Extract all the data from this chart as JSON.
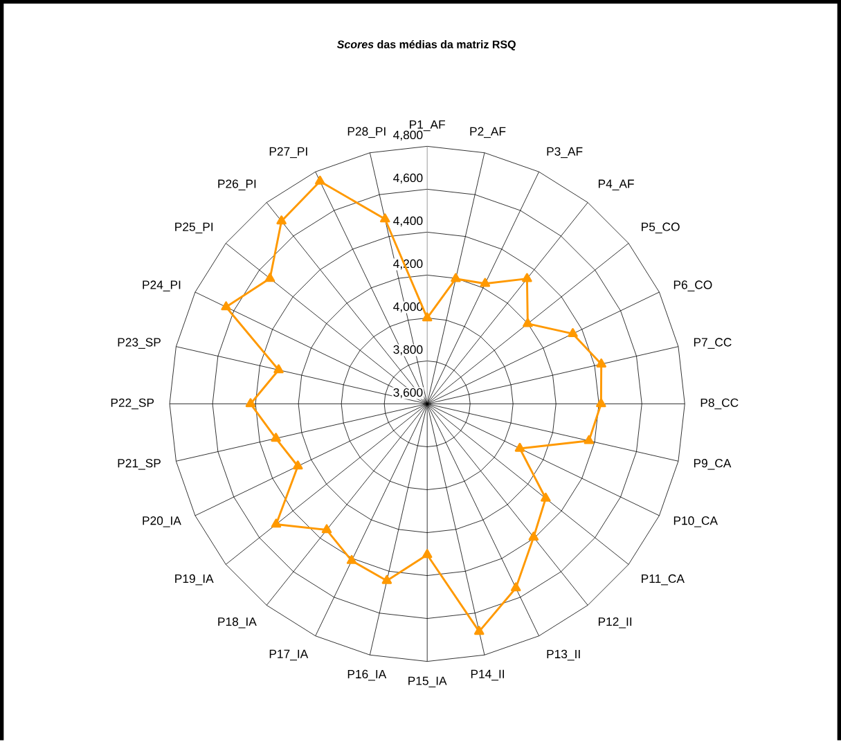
{
  "chart_data": {
    "type": "radar",
    "title": "*Scores* das médias da matriz RSQ",
    "categories": [
      "P1_AF",
      "P2_AF",
      "P3_AF",
      "P4_AF",
      "P5_CO",
      "P6_CO",
      "P7_CC",
      "P8_CC",
      "P9_CA",
      "P10_CA",
      "P11_CA",
      "P12_II",
      "P13_II",
      "P14_II",
      "P15_IA",
      "P16_IA",
      "P17_IA",
      "P18_IA",
      "P19_IA",
      "P20_IA",
      "P21_SP",
      "P22_SP",
      "P23_SP",
      "P24_PI",
      "P25_PI",
      "P26_PI",
      "P27_PI",
      "P28_PI"
    ],
    "series": [
      {
        "color": "#ff9900",
        "values": [
          4000,
          4198,
          4222,
          4346,
          4199,
          4353,
          4432,
          4410,
          4373,
          4079,
          4306,
          4395,
          4552,
          4688,
          4303,
          4445,
          4411,
          4351,
          4500,
          4269,
          4323,
          4423,
          4310,
          4640,
          4537,
          4689,
          4751,
          4483
        ]
      }
    ],
    "ylim": [
      3600,
      4800
    ],
    "yticks": [
      {
        "value": 3600,
        "label": "3,600"
      },
      {
        "value": 3800,
        "label": "3,800"
      },
      {
        "value": 4000,
        "label": "4,000"
      },
      {
        "value": 4200,
        "label": "4,200"
      },
      {
        "value": 4400,
        "label": "4,400"
      },
      {
        "value": 4600,
        "label": "4,600"
      },
      {
        "value": 4800,
        "label": "4,800"
      }
    ],
    "grid": true,
    "marker": "triangle",
    "line_style": "solid"
  }
}
